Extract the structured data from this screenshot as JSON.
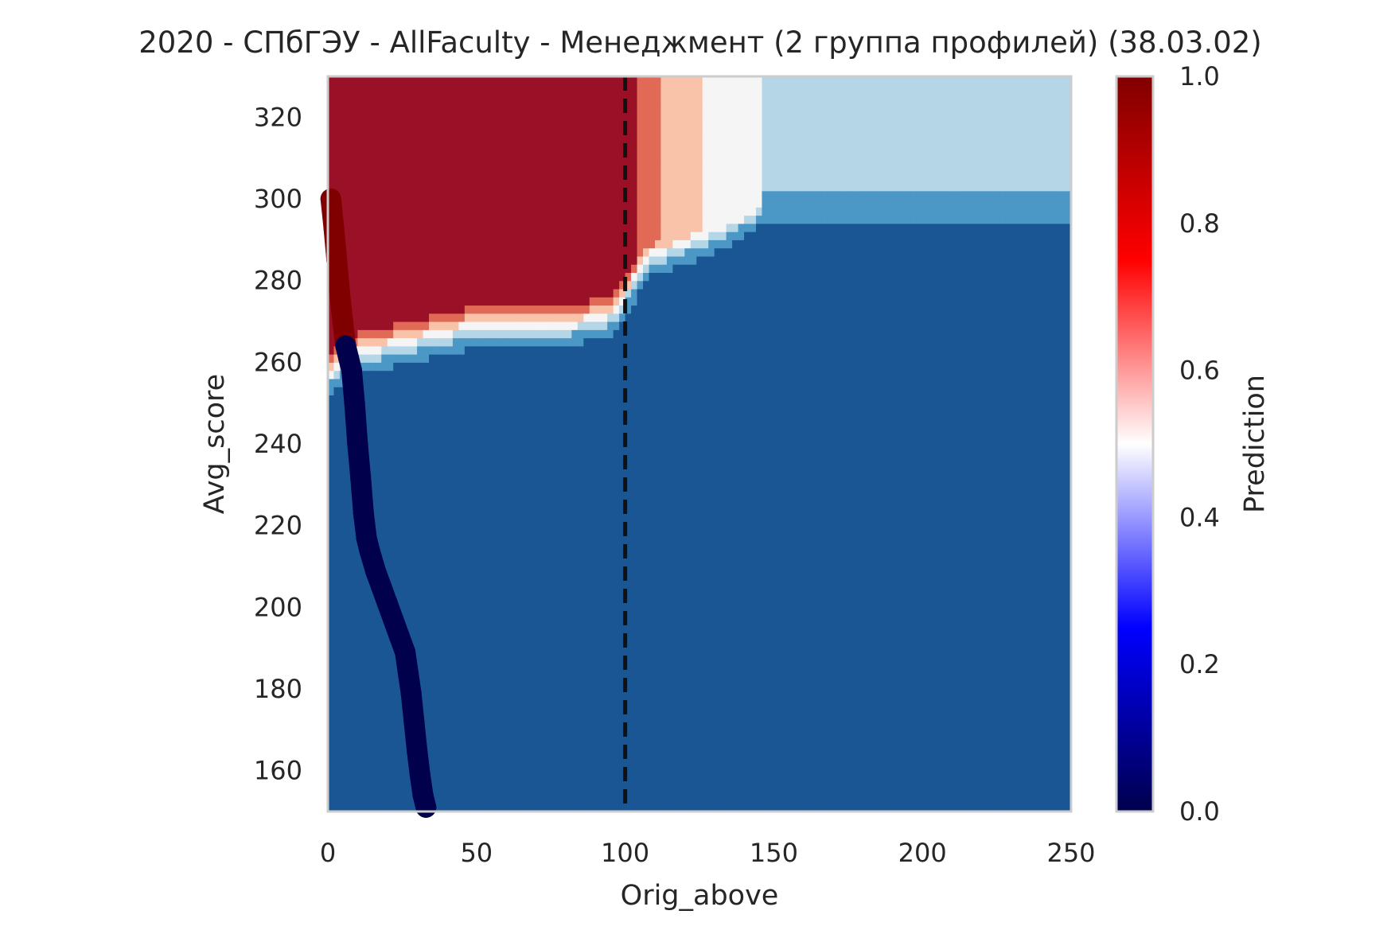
{
  "chart_data": {
    "type": "heatmap",
    "title": "2020 - СПбГЭУ - AllFaculty - Менеджмент (2 группа профилей) (38.03.02)",
    "xlabel": "Orig_above",
    "ylabel": "Avg_score",
    "xlim": [
      0,
      250
    ],
    "ylim": [
      150,
      330
    ],
    "xticks": [
      0,
      50,
      100,
      150,
      200,
      250
    ],
    "yticks": [
      160,
      180,
      200,
      220,
      240,
      260,
      280,
      300,
      320
    ],
    "grid": false,
    "colorbar": {
      "label": "Prediction",
      "range": [
        0,
        1
      ],
      "ticks": [
        0.0,
        0.2,
        0.4,
        0.6,
        0.8,
        1.0
      ],
      "tick_labels": [
        "0.0",
        "0.2",
        "0.4",
        "0.6",
        "0.8",
        "1.0"
      ],
      "colormap": "seismic"
    },
    "contour_levels": [
      {
        "range": [
          0.0,
          0.125
        ],
        "color": "#1b5694"
      },
      {
        "range": [
          0.125,
          0.25
        ],
        "color": "#4b97c5"
      },
      {
        "range": [
          0.25,
          0.375
        ],
        "color": "#b5d6e7"
      },
      {
        "range": [
          0.375,
          0.5
        ],
        "color": "#f5f5f5"
      },
      {
        "range": [
          0.5,
          0.625
        ],
        "color": "#f9c3a9"
      },
      {
        "range": [
          0.625,
          0.75
        ],
        "color": "#e06a55"
      },
      {
        "range": [
          0.75,
          1.0
        ],
        "color": "#9a1127"
      }
    ],
    "reference_line": {
      "x": 100,
      "style": "dashed",
      "color": "#111111"
    },
    "scatter_trace": {
      "x": [
        1,
        2,
        3,
        4,
        5,
        6,
        7,
        8,
        9,
        10,
        11,
        12,
        13,
        14,
        16,
        18,
        20,
        22,
        24,
        26,
        27,
        28,
        29,
        30,
        31,
        32,
        33
      ],
      "y": [
        300,
        293,
        285,
        277,
        270,
        264,
        261,
        258,
        250,
        240,
        232,
        223,
        217,
        214,
        209,
        205,
        201,
        197,
        193,
        189,
        184,
        179,
        172,
        165,
        159,
        154,
        151
      ],
      "prediction": [
        1,
        1,
        1,
        1,
        1,
        0,
        0,
        0,
        0,
        0,
        0,
        0,
        0,
        0,
        0,
        0,
        0,
        0,
        0,
        0,
        0,
        0,
        0,
        0,
        0,
        0,
        0
      ]
    }
  }
}
